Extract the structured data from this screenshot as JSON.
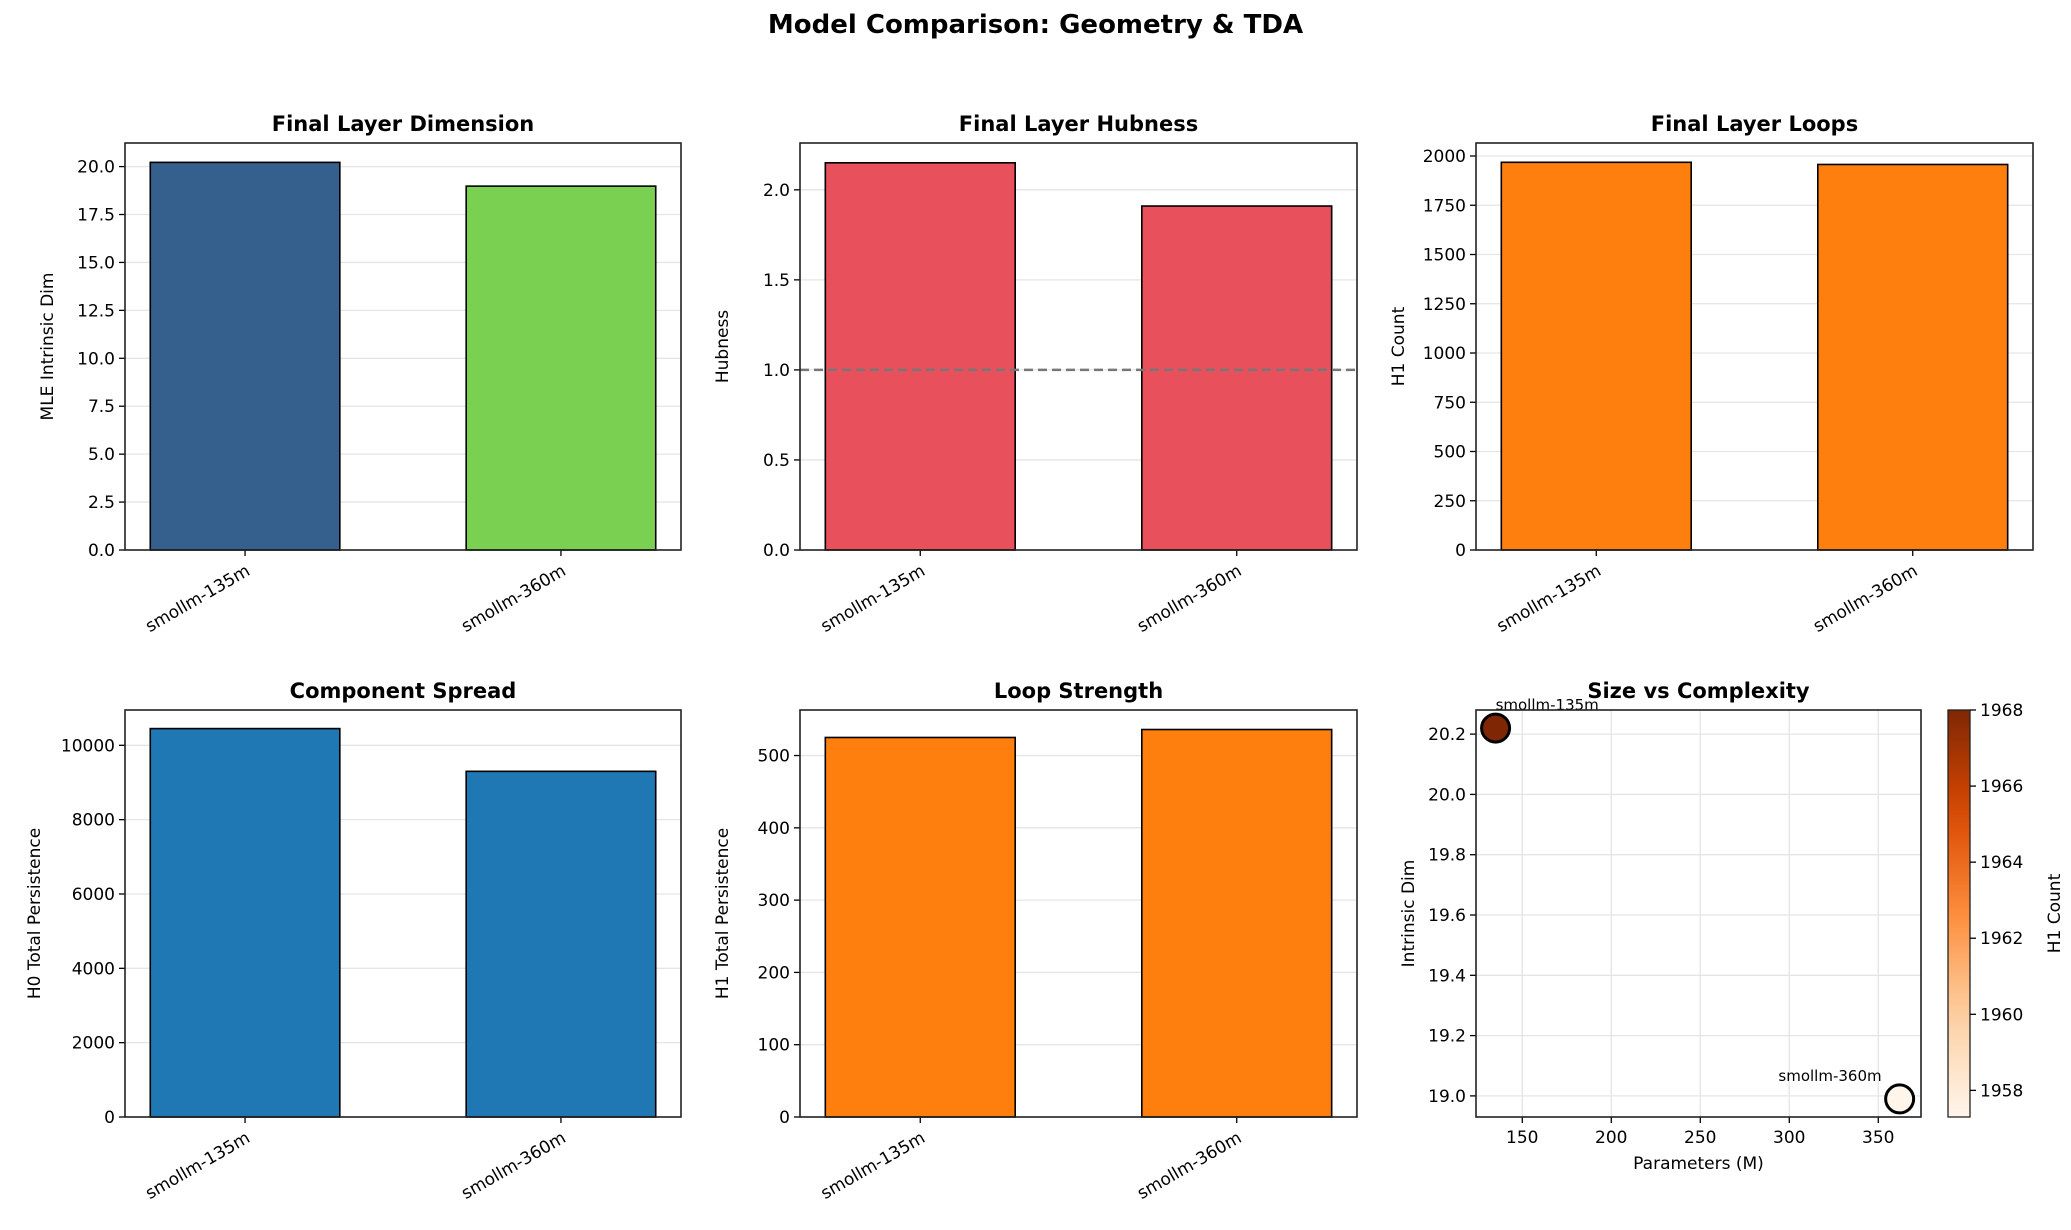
{
  "title": "Model Comparison: Geometry & TDA",
  "chart_data": [
    {
      "type": "bar",
      "title": "Final Layer Dimension",
      "ylabel": "MLE Intrinsic Dim",
      "categories": [
        "smollm-135m",
        "smollm-360m"
      ],
      "values": [
        20.22,
        18.98
      ],
      "colors": [
        "#355f8d",
        "#7ad151"
      ],
      "ylim": [
        0,
        21.23
      ],
      "yticks": [
        "0.0",
        "2.5",
        "5.0",
        "7.5",
        "10.0",
        "12.5",
        "15.0",
        "17.5",
        "20.0"
      ],
      "grid": "y"
    },
    {
      "type": "bar",
      "title": "Final Layer Hubness",
      "ylabel": "Hubness",
      "categories": [
        "smollm-135m",
        "smollm-360m"
      ],
      "values": [
        2.15,
        1.91
      ],
      "colors": [
        "#e8505b",
        "#e8505b"
      ],
      "ylim": [
        0,
        2.26
      ],
      "yticks": [
        "0.0",
        "0.5",
        "1.0",
        "1.5",
        "2.0"
      ],
      "reference_line": 1.0,
      "grid": "y"
    },
    {
      "type": "bar",
      "title": "Final Layer Loops",
      "ylabel": "H1 Count",
      "categories": [
        "smollm-135m",
        "smollm-360m"
      ],
      "values": [
        1968,
        1957
      ],
      "colors": [
        "#ff7f0e",
        "#ff7f0e"
      ],
      "ylim": [
        0,
        2066
      ],
      "yticks": [
        "0",
        "250",
        "500",
        "750",
        "1000",
        "1250",
        "1500",
        "1750",
        "2000"
      ],
      "grid": "y"
    },
    {
      "type": "bar",
      "title": "Component Spread",
      "ylabel": "H0 Total Persistence",
      "categories": [
        "smollm-135m",
        "smollm-360m"
      ],
      "values": [
        10450,
        9300
      ],
      "colors": [
        "#1f77b4",
        "#1f77b4"
      ],
      "ylim": [
        0,
        10950
      ],
      "yticks": [
        "0",
        "2000",
        "4000",
        "6000",
        "8000",
        "10000"
      ],
      "grid": "y"
    },
    {
      "type": "bar",
      "title": "Loop Strength",
      "ylabel": "H1 Total Persistence",
      "categories": [
        "smollm-135m",
        "smollm-360m"
      ],
      "values": [
        525,
        536
      ],
      "colors": [
        "#ff7f0e",
        "#ff7f0e"
      ],
      "ylim": [
        0,
        563
      ],
      "yticks": [
        "0",
        "100",
        "200",
        "300",
        "400",
        "500"
      ],
      "grid": "y"
    },
    {
      "type": "scatter",
      "title": "Size vs Complexity",
      "xlabel": "Parameters (M)",
      "ylabel": "Intrinsic Dim",
      "points": [
        {
          "label": "smollm-135m",
          "x": 135,
          "y": 20.22,
          "c": 1968
        },
        {
          "label": "smollm-360m",
          "x": 362,
          "y": 18.99,
          "c": 1957.3
        }
      ],
      "xlim": [
        124,
        374
      ],
      "ylim": [
        18.93,
        20.28
      ],
      "xticks": [
        "150",
        "200",
        "250",
        "300",
        "350"
      ],
      "yticks": [
        "19.0",
        "19.2",
        "19.4",
        "19.6",
        "19.8",
        "20.0",
        "20.2"
      ],
      "colorbar": {
        "label": "H1 Count",
        "colormap": "Oranges",
        "range": [
          1957.3,
          1968
        ],
        "ticks": [
          "1958",
          "1960",
          "1962",
          "1964",
          "1966",
          "1968"
        ]
      },
      "grid": "both"
    }
  ]
}
